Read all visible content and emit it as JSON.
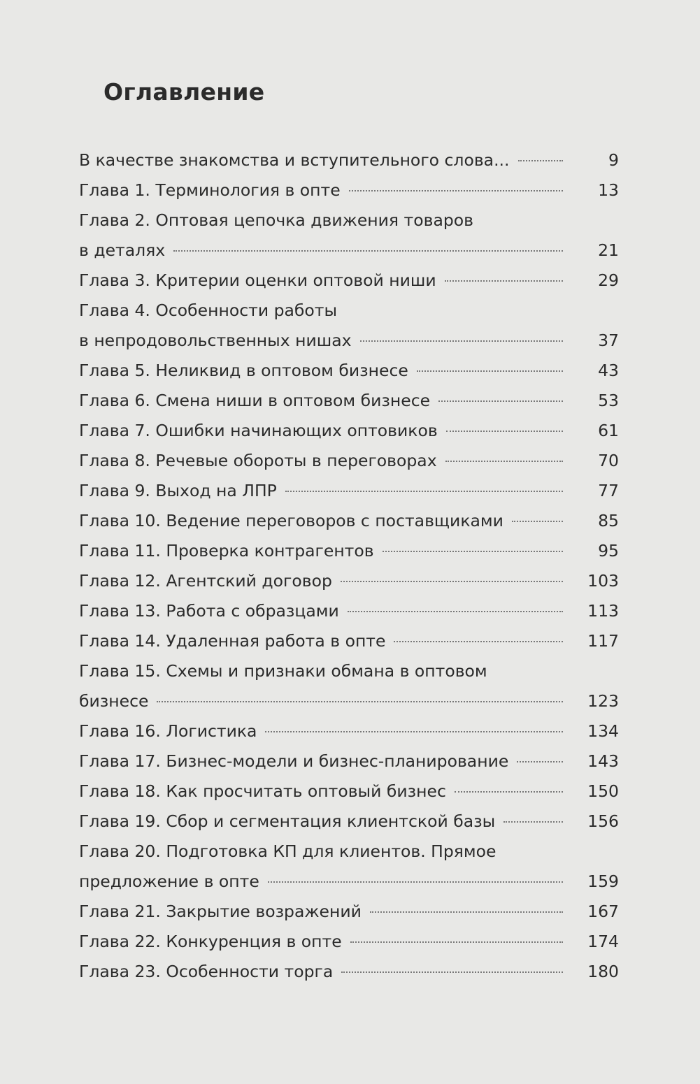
{
  "title": "Оглавление",
  "entries": [
    {
      "lines": [
        "В качестве знакомства и вступительного слова..."
      ],
      "page": "9"
    },
    {
      "lines": [
        "Глава 1. Терминология в опте"
      ],
      "page": "13"
    },
    {
      "lines": [
        "Глава 2. Оптовая цепочка движения товаров",
        "в деталях"
      ],
      "page": "21"
    },
    {
      "lines": [
        "Глава 3. Критерии оценки оптовой ниши"
      ],
      "page": "29"
    },
    {
      "lines": [
        "Глава 4. Особенности работы",
        "в непродовольственных нишах"
      ],
      "page": "37"
    },
    {
      "lines": [
        "Глава 5. Неликвид в оптовом бизнесе"
      ],
      "page": "43"
    },
    {
      "lines": [
        "Глава 6. Смена ниши в оптовом бизнесе"
      ],
      "page": "53"
    },
    {
      "lines": [
        "Глава 7. Ошибки начинающих оптовиков"
      ],
      "page": "61"
    },
    {
      "lines": [
        "Глава 8. Речевые обороты в переговорах"
      ],
      "page": "70"
    },
    {
      "lines": [
        "Глава 9. Выход на ЛПР"
      ],
      "page": "77"
    },
    {
      "lines": [
        "Глава 10. Ведение переговоров с поставщиками"
      ],
      "page": "85"
    },
    {
      "lines": [
        "Глава 11. Проверка контрагентов"
      ],
      "page": "95"
    },
    {
      "lines": [
        "Глава 12. Агентский договор"
      ],
      "page": "103"
    },
    {
      "lines": [
        "Глава 13. Работа с образцами"
      ],
      "page": "113"
    },
    {
      "lines": [
        "Глава 14. Удаленная работа в опте"
      ],
      "page": "117"
    },
    {
      "lines": [
        "Глава 15. Схемы и признаки обмана в оптовом",
        "бизнесе"
      ],
      "page": "123"
    },
    {
      "lines": [
        "Глава 16. Логистика"
      ],
      "page": "134"
    },
    {
      "lines": [
        "Глава 17. Бизнес-модели и бизнес-планирование"
      ],
      "page": "143"
    },
    {
      "lines": [
        "Глава 18. Как просчитать оптовый бизнес"
      ],
      "page": "150"
    },
    {
      "lines": [
        "Глава 19. Сбор и сегментация клиентской базы"
      ],
      "page": "156"
    },
    {
      "lines": [
        "Глава 20. Подготовка КП для клиентов. Прямое",
        "предложение в опте"
      ],
      "page": "159"
    },
    {
      "lines": [
        "Глава 21. Закрытие возражений"
      ],
      "page": "167"
    },
    {
      "lines": [
        "Глава 22. Конкуренция в опте"
      ],
      "page": "174"
    },
    {
      "lines": [
        "Глава 23. Особенности торга"
      ],
      "page": "180"
    }
  ]
}
